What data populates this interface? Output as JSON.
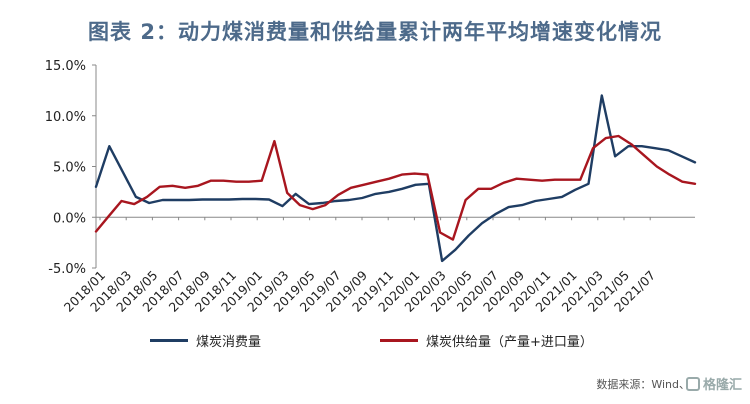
{
  "chart_data": {
    "type": "line",
    "title": "图表 2：动力煤消费量和供给量累计两年平均增速变化情况",
    "xlabel": "",
    "ylabel": "",
    "ylim": [
      -5,
      15
    ],
    "yticks": [
      "15.0%",
      "10.0%",
      "5.0%",
      "0.0%",
      "-5.0%"
    ],
    "ytick_values": [
      15,
      10,
      5,
      0,
      -5
    ],
    "x_tick_labels": [
      "2018/01",
      "2018/03",
      "2018/05",
      "2018/07",
      "2018/09",
      "2018/11",
      "2019/01",
      "2019/03",
      "2019/05",
      "2019/07",
      "2019/09",
      "2019/11",
      "2020/01",
      "2020/03",
      "2020/05",
      "2020/07",
      "2020/09",
      "2020/11",
      "2021/01",
      "2021/03",
      "2021/05",
      "2021/07"
    ],
    "grid": false,
    "legend_position": "bottom",
    "series": [
      {
        "name": "煤炭消费量",
        "color": "#1f3d63",
        "values": [
          3.0,
          7.0,
          4.5,
          2.0,
          1.4,
          1.7,
          1.7,
          1.7,
          1.75,
          1.75,
          1.75,
          1.8,
          1.8,
          1.75,
          1.1,
          2.3,
          1.3,
          1.4,
          1.6,
          1.7,
          1.9,
          2.3,
          2.5,
          2.8,
          3.2,
          3.3,
          -4.3,
          -3.2,
          -1.8,
          -0.6,
          0.3,
          1.0,
          1.2,
          1.6,
          1.8,
          2.0,
          2.7,
          3.3,
          12.0,
          6.0,
          7.0,
          7.0,
          6.8,
          6.6,
          6.0,
          5.4
        ]
      },
      {
        "name": "煤炭供给量（产量+进口量）",
        "color": "#a8161f",
        "values": [
          -1.4,
          0.1,
          1.6,
          1.3,
          2.0,
          3.0,
          3.1,
          2.9,
          3.1,
          3.6,
          3.6,
          3.5,
          3.5,
          3.6,
          7.5,
          2.4,
          1.2,
          0.8,
          1.2,
          2.2,
          2.9,
          3.2,
          3.5,
          3.8,
          4.2,
          4.3,
          4.2,
          -1.5,
          -2.2,
          1.7,
          2.8,
          2.8,
          3.4,
          3.8,
          3.7,
          3.6,
          3.7,
          3.7,
          3.7,
          6.8,
          7.8,
          8.0,
          7.2,
          6.1,
          5.0,
          4.2,
          3.5,
          3.3
        ]
      }
    ]
  },
  "legend": {
    "consumption": "煤炭消费量",
    "supply": "煤炭供给量（产量+进口量）"
  },
  "source": "数据来源：Wind、",
  "watermark": "格隆汇"
}
